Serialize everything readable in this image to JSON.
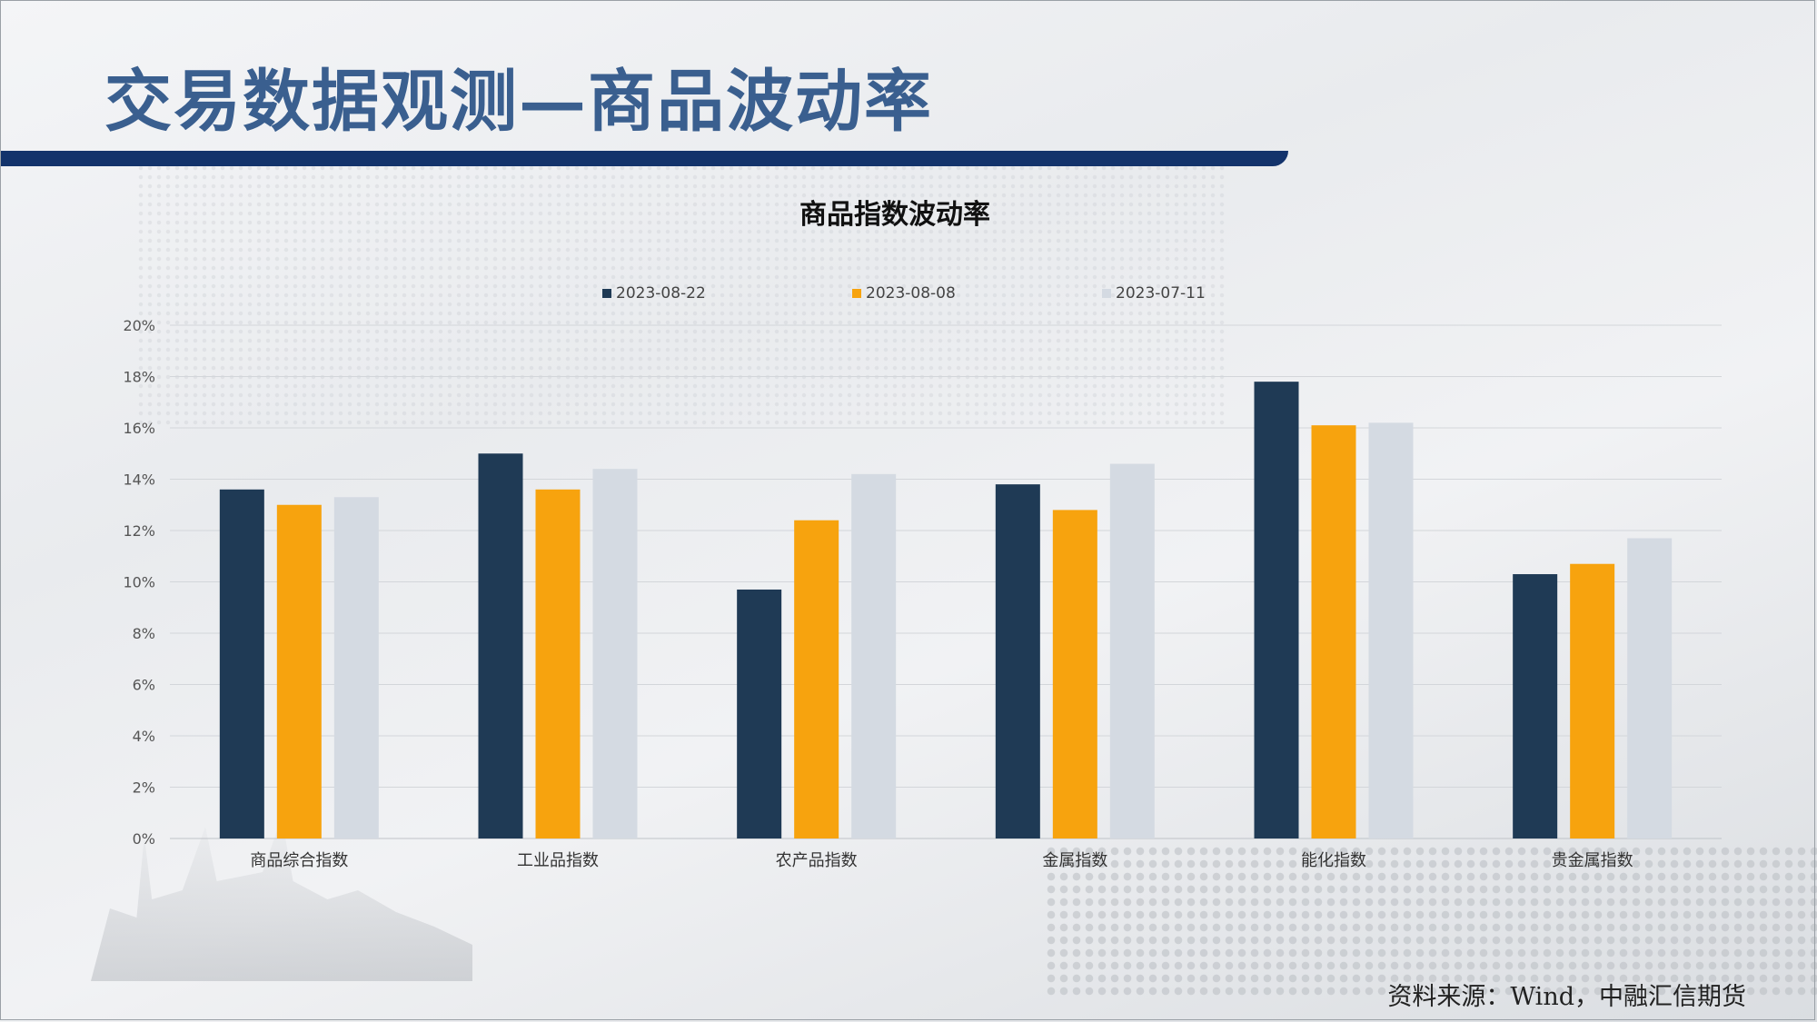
{
  "slide": {
    "title": "交易数据观测—商品波动率",
    "source": "资料来源：Wind，中融汇信期货"
  },
  "colors": {
    "title_text": "#3a5f8f",
    "title_bar": "#13336b",
    "series": [
      "#1f3a55",
      "#f7a30e",
      "#d4dae2"
    ]
  },
  "chart_data": {
    "type": "bar",
    "title": "商品指数波动率",
    "categories": [
      "商品综合指数",
      "工业品指数",
      "农产品指数",
      "金属指数",
      "能化指数",
      "贵金属指数"
    ],
    "series": [
      {
        "name": "2023-08-22",
        "values": [
          13.6,
          15.0,
          9.7,
          13.8,
          17.8,
          10.3
        ]
      },
      {
        "name": "2023-08-08",
        "values": [
          13.0,
          13.6,
          12.4,
          12.8,
          16.1,
          10.7
        ]
      },
      {
        "name": "2023-07-11",
        "values": [
          13.3,
          14.4,
          14.2,
          14.6,
          16.2,
          11.7
        ]
      }
    ],
    "ylim": [
      0,
      20
    ],
    "y_ticks": [
      "0%",
      "2%",
      "4%",
      "6%",
      "8%",
      "10%",
      "12%",
      "14%",
      "16%",
      "18%",
      "20%"
    ],
    "grid": true,
    "legend_position": "top-center"
  }
}
